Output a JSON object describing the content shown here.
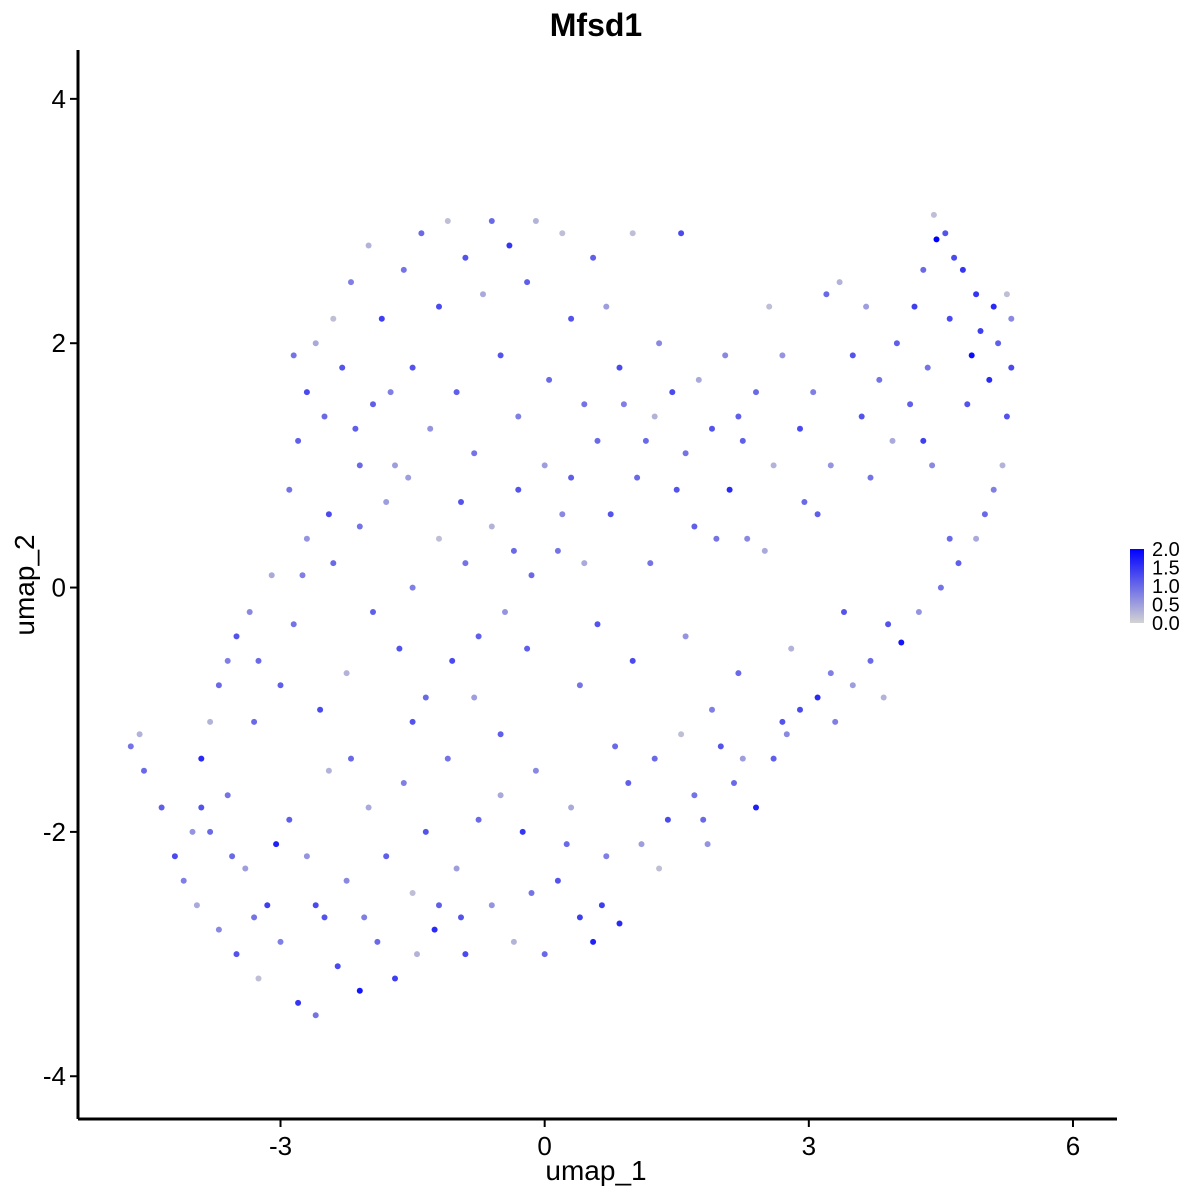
{
  "chart_data": {
    "type": "scatter",
    "title": "Mfsd1",
    "xlabel": "umap_1",
    "ylabel": "umap_2",
    "xlim": [
      -5.3,
      6.5
    ],
    "ylim": [
      -4.35,
      4.4
    ],
    "x_ticks": [
      -3,
      0,
      3,
      6
    ],
    "y_ticks": [
      -4,
      -2,
      0,
      2,
      4
    ],
    "x_tick_labels": [
      "-3",
      "0",
      "3",
      "6"
    ],
    "y_tick_labels": [
      "-4",
      "-2",
      "0",
      "2",
      "4"
    ],
    "grid": false,
    "legend": {
      "title": "",
      "placement": "right",
      "min": 0.0,
      "max": 2.0,
      "breaks": [
        0.0,
        0.5,
        1.0,
        1.5,
        2.0
      ],
      "break_labels": [
        "0.0",
        "0.5",
        "1.0",
        "1.5",
        "2.0"
      ]
    },
    "colors": {
      "low": "#d3d3d3",
      "high": "#0000ff"
    },
    "points": [
      [
        -4.7,
        -1.3,
        0.9
      ],
      [
        -4.6,
        -1.2,
        0.3
      ],
      [
        -4.55,
        -1.5,
        1.0
      ],
      [
        -4.35,
        -1.8,
        1.1
      ],
      [
        -4.2,
        -2.2,
        1.3
      ],
      [
        -4.1,
        -2.4,
        0.8
      ],
      [
        -3.95,
        -2.6,
        0.4
      ],
      [
        -3.9,
        -1.4,
        1.6
      ],
      [
        -3.8,
        -2.0,
        1.0
      ],
      [
        -3.7,
        -2.8,
        0.7
      ],
      [
        -3.6,
        -1.7,
        0.9
      ],
      [
        -3.5,
        -3.0,
        1.2
      ],
      [
        -3.4,
        -2.3,
        0.5
      ],
      [
        -3.3,
        -1.1,
        1.0
      ],
      [
        -3.25,
        -3.2,
        0.2
      ],
      [
        -3.15,
        -2.6,
        1.4
      ],
      [
        -3.0,
        -2.9,
        0.8
      ],
      [
        -2.9,
        -1.9,
        1.1
      ],
      [
        -2.8,
        -3.4,
        1.5
      ],
      [
        -2.7,
        -2.2,
        0.6
      ],
      [
        -2.6,
        -3.5,
        0.9
      ],
      [
        -2.5,
        -2.7,
        1.2
      ],
      [
        -2.45,
        -1.5,
        0.3
      ],
      [
        -2.35,
        -3.1,
        1.3
      ],
      [
        -2.25,
        -2.4,
        0.7
      ],
      [
        -2.1,
        -3.3,
        1.8
      ],
      [
        -2.0,
        -1.8,
        0.4
      ],
      [
        -1.9,
        -2.9,
        1.0
      ],
      [
        -1.8,
        -2.2,
        1.1
      ],
      [
        -1.7,
        -3.2,
        1.4
      ],
      [
        -1.6,
        -1.6,
        0.8
      ],
      [
        -1.5,
        -2.5,
        0.2
      ],
      [
        -1.35,
        -2.0,
        1.2
      ],
      [
        -1.25,
        -2.8,
        1.6
      ],
      [
        -1.1,
        -1.4,
        0.9
      ],
      [
        -1.0,
        -2.3,
        0.5
      ],
      [
        -0.9,
        -3.0,
        1.3
      ],
      [
        -0.75,
        -1.9,
        1.0
      ],
      [
        -0.6,
        -2.6,
        0.6
      ],
      [
        -0.5,
        -1.2,
        1.1
      ],
      [
        -0.35,
        -2.9,
        0.3
      ],
      [
        -0.25,
        -2.0,
        1.5
      ],
      [
        -0.1,
        -1.5,
        0.7
      ],
      [
        0.0,
        -3.0,
        1.0
      ],
      [
        0.15,
        -2.4,
        1.2
      ],
      [
        0.3,
        -1.8,
        0.4
      ],
      [
        0.4,
        -2.7,
        1.4
      ],
      [
        0.55,
        -2.9,
        1.7
      ],
      [
        0.7,
        -2.2,
        0.8
      ],
      [
        0.85,
        -2.75,
        1.6
      ],
      [
        0.95,
        -1.6,
        1.1
      ],
      [
        1.1,
        -2.1,
        0.5
      ],
      [
        1.25,
        -1.4,
        1.0
      ],
      [
        1.4,
        -1.9,
        1.3
      ],
      [
        1.55,
        -1.2,
        0.2
      ],
      [
        1.7,
        -1.7,
        0.9
      ],
      [
        1.85,
        -2.1,
        0.6
      ],
      [
        2.0,
        -1.3,
        1.2
      ],
      [
        2.15,
        -1.6,
        1.0
      ],
      [
        2.4,
        -1.8,
        1.7
      ],
      [
        2.6,
        -1.4,
        1.1
      ],
      [
        2.75,
        -1.2,
        0.7
      ],
      [
        2.9,
        -1.0,
        1.3
      ],
      [
        3.1,
        -0.9,
        1.6
      ],
      [
        3.3,
        -1.1,
        0.8
      ],
      [
        3.5,
        -0.8,
        0.5
      ],
      [
        3.7,
        -0.6,
        1.0
      ],
      [
        3.9,
        -0.3,
        1.2
      ],
      [
        4.05,
        -0.45,
        1.8
      ],
      [
        4.25,
        -0.2,
        0.6
      ],
      [
        4.5,
        0.0,
        0.9
      ],
      [
        4.7,
        0.2,
        1.1
      ],
      [
        4.9,
        0.4,
        0.4
      ],
      [
        5.0,
        0.6,
        1.0
      ],
      [
        5.1,
        0.8,
        0.8
      ],
      [
        5.2,
        1.0,
        0.3
      ],
      [
        5.25,
        1.4,
        1.2
      ],
      [
        5.3,
        1.8,
        1.3
      ],
      [
        5.3,
        2.2,
        0.7
      ],
      [
        5.25,
        2.4,
        0.2
      ],
      [
        5.1,
        2.3,
        1.6
      ],
      [
        4.95,
        2.1,
        1.4
      ],
      [
        4.85,
        1.9,
        1.9
      ],
      [
        4.75,
        2.6,
        1.5
      ],
      [
        4.65,
        2.7,
        1.3
      ],
      [
        4.55,
        2.9,
        1.2
      ],
      [
        4.45,
        2.85,
        2.0
      ],
      [
        4.42,
        3.05,
        0.2
      ],
      [
        4.3,
        2.6,
        1.0
      ],
      [
        4.2,
        2.3,
        1.4
      ],
      [
        4.0,
        2.0,
        1.1
      ],
      [
        3.8,
        1.7,
        0.9
      ],
      [
        3.65,
        2.3,
        0.5
      ],
      [
        3.5,
        1.9,
        1.2
      ],
      [
        3.35,
        2.5,
        0.3
      ],
      [
        3.2,
        2.4,
        1.0
      ],
      [
        3.05,
        1.6,
        0.8
      ],
      [
        2.9,
        1.3,
        1.3
      ],
      [
        2.7,
        1.9,
        0.6
      ],
      [
        2.55,
        2.3,
        0.2
      ],
      [
        2.4,
        1.6,
        1.0
      ],
      [
        2.2,
        1.4,
        1.1
      ],
      [
        2.05,
        1.9,
        0.7
      ],
      [
        1.9,
        1.3,
        1.2
      ],
      [
        1.75,
        1.7,
        0.4
      ],
      [
        1.6,
        1.1,
        0.9
      ],
      [
        1.45,
        1.6,
        1.3
      ],
      [
        1.55,
        2.9,
        1.3
      ],
      [
        1.25,
        1.4,
        0.3
      ],
      [
        1.05,
        0.9,
        1.0
      ],
      [
        0.9,
        1.5,
        0.8
      ],
      [
        0.75,
        0.6,
        1.2
      ],
      [
        0.6,
        1.2,
        1.0
      ],
      [
        0.45,
        0.2,
        0.4
      ],
      [
        0.3,
        0.9,
        1.1
      ],
      [
        0.15,
        0.3,
        0.9
      ],
      [
        0.0,
        1.0,
        0.5
      ],
      [
        -0.15,
        0.1,
        1.0
      ],
      [
        -0.3,
        0.8,
        1.2
      ],
      [
        -0.45,
        -0.2,
        0.6
      ],
      [
        -0.6,
        0.5,
        0.3
      ],
      [
        -0.75,
        -0.4,
        1.1
      ],
      [
        -0.9,
        0.2,
        0.9
      ],
      [
        -1.05,
        -0.6,
        1.3
      ],
      [
        -1.2,
        0.4,
        0.2
      ],
      [
        -1.35,
        -0.9,
        1.0
      ],
      [
        -1.5,
        0.0,
        0.8
      ],
      [
        -1.65,
        -0.5,
        1.2
      ],
      [
        -1.8,
        0.7,
        0.5
      ],
      [
        -1.95,
        -0.2,
        1.1
      ],
      [
        -2.1,
        0.5,
        0.9
      ],
      [
        -2.25,
        -0.7,
        0.3
      ],
      [
        -2.4,
        0.2,
        1.0
      ],
      [
        -2.55,
        -1.0,
        1.3
      ],
      [
        -2.7,
        0.4,
        0.6
      ],
      [
        -2.85,
        -0.3,
        0.9
      ],
      [
        -3.0,
        -0.8,
        1.1
      ],
      [
        -3.1,
        0.1,
        0.4
      ],
      [
        -3.25,
        -0.6,
        1.0
      ],
      [
        -3.35,
        -0.2,
        0.7
      ],
      [
        -3.5,
        -0.4,
        1.2
      ],
      [
        -3.6,
        -0.6,
        0.8
      ],
      [
        -3.7,
        -0.8,
        1.0
      ],
      [
        -3.8,
        -1.1,
        0.3
      ],
      [
        -2.9,
        0.8,
        0.9
      ],
      [
        -2.8,
        1.2,
        1.1
      ],
      [
        -2.7,
        1.6,
        1.3
      ],
      [
        -2.6,
        2.0,
        0.4
      ],
      [
        -2.5,
        1.4,
        1.0
      ],
      [
        -2.4,
        2.2,
        0.2
      ],
      [
        -2.3,
        1.8,
        1.2
      ],
      [
        -2.2,
        2.5,
        0.8
      ],
      [
        -2.1,
        1.0,
        1.0
      ],
      [
        -2.0,
        2.8,
        0.3
      ],
      [
        -1.95,
        1.5,
        1.1
      ],
      [
        -1.85,
        2.2,
        1.4
      ],
      [
        -1.7,
        1.0,
        0.5
      ],
      [
        -1.6,
        2.6,
        0.9
      ],
      [
        -1.5,
        1.8,
        1.2
      ],
      [
        -1.4,
        2.9,
        1.0
      ],
      [
        -1.3,
        1.3,
        0.6
      ],
      [
        -1.2,
        2.3,
        1.3
      ],
      [
        -1.1,
        3.0,
        0.2
      ],
      [
        -1.0,
        1.6,
        1.1
      ],
      [
        -0.9,
        2.7,
        1.2
      ],
      [
        -0.8,
        1.1,
        0.9
      ],
      [
        -0.7,
        2.4,
        0.4
      ],
      [
        -0.6,
        3.0,
        1.0
      ],
      [
        -0.5,
        1.9,
        1.2
      ],
      [
        -0.4,
        2.8,
        1.5
      ],
      [
        -0.3,
        1.4,
        0.8
      ],
      [
        -0.2,
        2.5,
        1.1
      ],
      [
        -0.1,
        3.0,
        0.3
      ],
      [
        0.05,
        1.7,
        1.0
      ],
      [
        0.2,
        2.9,
        0.2
      ],
      [
        0.3,
        2.2,
        1.2
      ],
      [
        0.45,
        1.5,
        0.9
      ],
      [
        0.55,
        2.7,
        1.1
      ],
      [
        0.7,
        2.3,
        0.5
      ],
      [
        0.85,
        1.8,
        1.3
      ],
      [
        1.0,
        2.9,
        0.2
      ],
      [
        1.15,
        1.2,
        1.0
      ],
      [
        1.3,
        2.0,
        0.7
      ],
      [
        -2.75,
        0.1,
        0.8
      ],
      [
        -2.2,
        -1.4,
        1.0
      ],
      [
        -1.5,
        -1.1,
        1.2
      ],
      [
        -0.8,
        -0.9,
        0.5
      ],
      [
        -0.2,
        -0.5,
        1.1
      ],
      [
        0.4,
        -0.8,
        0.9
      ],
      [
        1.0,
        -0.6,
        1.3
      ],
      [
        1.6,
        -0.4,
        0.6
      ],
      [
        2.2,
        -0.7,
        1.0
      ],
      [
        2.8,
        -0.5,
        0.3
      ],
      [
        3.4,
        -0.2,
        1.2
      ],
      [
        0.8,
        -1.3,
        1.0
      ],
      [
        1.9,
        -1.0,
        0.8
      ],
      [
        2.5,
        0.3,
        0.4
      ],
      [
        3.1,
        0.6,
        1.1
      ],
      [
        3.7,
        0.9,
        0.9
      ],
      [
        4.3,
        1.2,
        1.4
      ],
      [
        2.1,
        0.8,
        1.6
      ],
      [
        2.3,
        0.4,
        0.7
      ],
      [
        1.7,
        0.5,
        1.1
      ],
      [
        1.2,
        0.2,
        0.9
      ],
      [
        0.6,
        -0.3,
        1.2
      ],
      [
        -0.5,
        -1.7,
        0.4
      ],
      [
        -1.2,
        -2.6,
        1.1
      ],
      [
        -2.6,
        -2.6,
        1.3
      ],
      [
        -3.3,
        -2.7,
        0.9
      ],
      [
        -3.9,
        -1.8,
        1.2
      ],
      [
        -4.0,
        -2.0,
        0.6
      ],
      [
        -3.55,
        -2.2,
        1.0
      ],
      [
        -3.05,
        -2.1,
        1.7
      ],
      [
        -2.05,
        -2.7,
        0.8
      ],
      [
        -1.45,
        -3.0,
        0.3
      ],
      [
        -0.95,
        -2.7,
        1.2
      ],
      [
        -0.15,
        -2.5,
        0.9
      ],
      [
        0.25,
        -2.1,
        1.0
      ],
      [
        0.65,
        -2.6,
        1.4
      ],
      [
        1.3,
        -2.3,
        0.2
      ],
      [
        1.8,
        -1.9,
        1.0
      ],
      [
        2.25,
        -1.4,
        0.5
      ],
      [
        2.7,
        -1.1,
        1.2
      ],
      [
        3.25,
        -0.7,
        0.8
      ],
      [
        3.85,
        -0.9,
        0.3
      ],
      [
        4.6,
        0.4,
        1.0
      ],
      [
        4.4,
        1.0,
        0.7
      ],
      [
        4.8,
        1.5,
        1.2
      ],
      [
        5.05,
        1.7,
        1.6
      ],
      [
        5.15,
        2.0,
        1.1
      ],
      [
        4.9,
        2.4,
        1.5
      ],
      [
        4.6,
        2.2,
        1.3
      ],
      [
        4.35,
        1.8,
        0.9
      ],
      [
        4.15,
        1.5,
        1.1
      ],
      [
        3.95,
        1.2,
        0.4
      ],
      [
        3.6,
        1.4,
        1.2
      ],
      [
        3.25,
        1.0,
        0.6
      ],
      [
        2.95,
        0.7,
        1.0
      ],
      [
        2.6,
        1.0,
        0.3
      ],
      [
        2.25,
        1.2,
        1.1
      ],
      [
        1.95,
        0.4,
        0.9
      ],
      [
        1.5,
        0.8,
        1.2
      ],
      [
        0.2,
        0.6,
        0.7
      ],
      [
        -0.35,
        0.3,
        1.0
      ],
      [
        -0.95,
        0.7,
        1.2
      ],
      [
        -1.55,
        0.9,
        0.5
      ],
      [
        -2.15,
        1.3,
        1.1
      ],
      [
        -2.85,
        1.9,
        0.9
      ],
      [
        -2.45,
        0.6,
        1.3
      ],
      [
        -1.75,
        1.6,
        0.8
      ]
    ]
  }
}
